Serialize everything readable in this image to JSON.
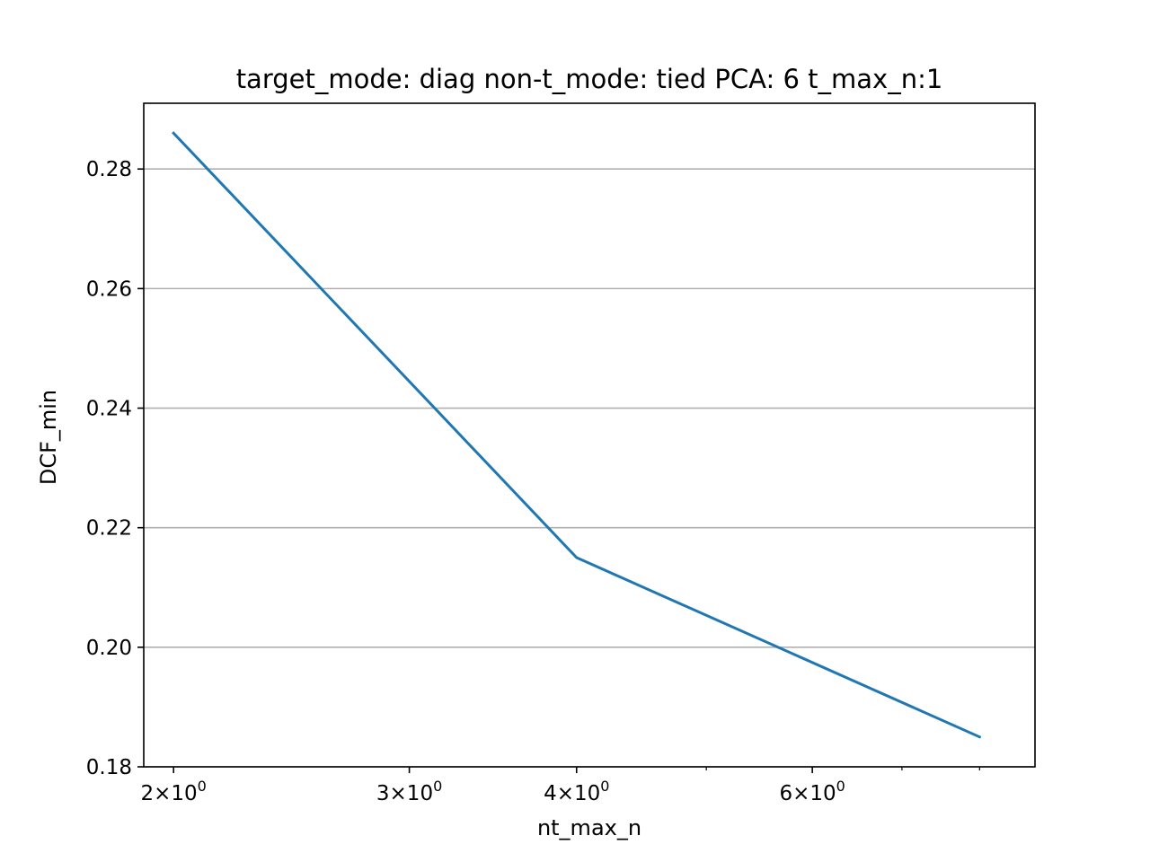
{
  "chart_data": {
    "type": "line",
    "title": "target_mode: diag non-t_mode: tied PCA: 6 t_max_n:1",
    "xlabel": "nt_max_n",
    "ylabel": "DCF_min",
    "xscale": "log",
    "xlim": [
      1.9,
      8.8
    ],
    "ylim": [
      0.18,
      0.291
    ],
    "grid": "y-major",
    "x_tick_labels": [
      {
        "value": 2,
        "mantissa": "2",
        "base": "10",
        "exp": "0"
      },
      {
        "value": 3,
        "mantissa": "3",
        "base": "10",
        "exp": "0"
      },
      {
        "value": 4,
        "mantissa": "4",
        "base": "10",
        "exp": "0"
      },
      {
        "value": 6,
        "mantissa": "6",
        "base": "10",
        "exp": "0"
      }
    ],
    "x_minor_ticks": [
      5,
      7,
      8
    ],
    "y_ticks": [
      {
        "value": 0.18,
        "label": "0.18"
      },
      {
        "value": 0.2,
        "label": "0.20"
      },
      {
        "value": 0.22,
        "label": "0.22"
      },
      {
        "value": 0.24,
        "label": "0.24"
      },
      {
        "value": 0.26,
        "label": "0.26"
      },
      {
        "value": 0.28,
        "label": "0.28"
      }
    ],
    "series": [
      {
        "x": [
          2,
          4,
          8
        ],
        "y": [
          0.286,
          0.215,
          0.185
        ],
        "color": "#1f77b4"
      }
    ]
  }
}
